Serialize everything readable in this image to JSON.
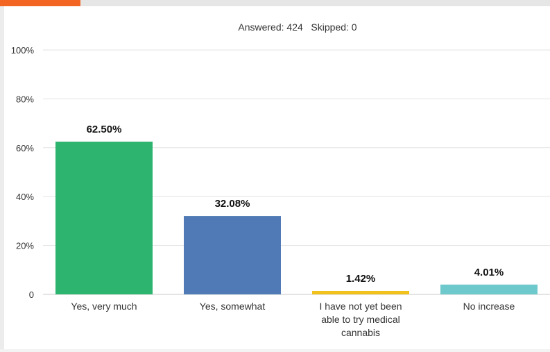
{
  "accent_color": "#f26522",
  "summary": "Answered: 424   Skipped: 0",
  "chart_data": {
    "type": "bar",
    "categories": [
      [
        "Yes, very much"
      ],
      [
        "Yes, somewhat"
      ],
      [
        "I have not yet been",
        "able to try medical",
        "cannabis"
      ],
      [
        "No increase"
      ]
    ],
    "values": [
      62.5,
      32.08,
      1.42,
      4.01
    ],
    "value_labels": [
      "62.50%",
      "32.08%",
      "1.42%",
      "4.01%"
    ],
    "colors": [
      "#2db46f",
      "#4f7ab5",
      "#f1c21b",
      "#6ec9cc"
    ],
    "ylim": [
      0,
      100
    ],
    "yticks": [
      0,
      20,
      40,
      60,
      80,
      100
    ],
    "ytick_labels": [
      "0",
      "20%",
      "40%",
      "60%",
      "80%",
      "100%"
    ],
    "grid": true
  }
}
